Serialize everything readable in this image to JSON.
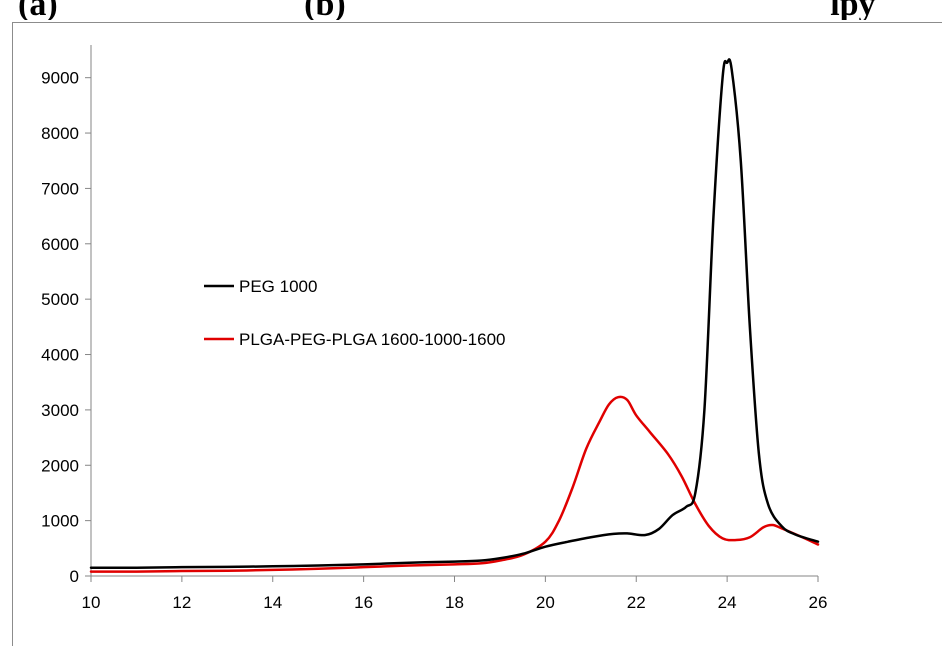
{
  "header": {
    "text": "(a)                             (b)                                                         lpy"
  },
  "chart_data": {
    "type": "line",
    "title": "",
    "xlabel": "",
    "ylabel": "",
    "xlim": [
      10,
      26
    ],
    "ylim": [
      0,
      9500
    ],
    "x_ticks": [
      10,
      12,
      14,
      16,
      18,
      20,
      22,
      24,
      26
    ],
    "y_ticks": [
      0,
      1000,
      2000,
      3000,
      4000,
      5000,
      6000,
      7000,
      8000,
      9000
    ],
    "grid": false,
    "legend_position": "center-left",
    "series": [
      {
        "name": "PEG 1000",
        "color": "#000000",
        "points": [
          [
            10,
            150
          ],
          [
            11,
            150
          ],
          [
            12,
            160
          ],
          [
            13,
            165
          ],
          [
            14,
            175
          ],
          [
            15,
            190
          ],
          [
            16,
            210
          ],
          [
            17,
            240
          ],
          [
            18,
            260
          ],
          [
            18.6,
            280
          ],
          [
            19,
            320
          ],
          [
            19.5,
            400
          ],
          [
            20,
            530
          ],
          [
            20.5,
            620
          ],
          [
            21,
            700
          ],
          [
            21.5,
            760
          ],
          [
            21.8,
            770
          ],
          [
            22.2,
            740
          ],
          [
            22.5,
            850
          ],
          [
            22.8,
            1100
          ],
          [
            23.1,
            1250
          ],
          [
            23.3,
            1500
          ],
          [
            23.5,
            3000
          ],
          [
            23.7,
            6500
          ],
          [
            23.9,
            9000
          ],
          [
            24.0,
            9270
          ],
          [
            24.1,
            9150
          ],
          [
            24.3,
            7500
          ],
          [
            24.5,
            4500
          ],
          [
            24.7,
            2200
          ],
          [
            24.9,
            1300
          ],
          [
            25.2,
            900
          ],
          [
            25.5,
            750
          ],
          [
            26,
            620
          ]
        ]
      },
      {
        "name": "PLGA-PEG-PLGA 1600-1000-1600",
        "color": "#e00000",
        "points": [
          [
            10,
            80
          ],
          [
            11,
            80
          ],
          [
            12,
            90
          ],
          [
            13,
            95
          ],
          [
            14,
            110
          ],
          [
            15,
            130
          ],
          [
            16,
            160
          ],
          [
            17,
            190
          ],
          [
            18,
            210
          ],
          [
            18.6,
            230
          ],
          [
            19,
            280
          ],
          [
            19.5,
            380
          ],
          [
            20,
            620
          ],
          [
            20.3,
            1000
          ],
          [
            20.6,
            1600
          ],
          [
            20.9,
            2300
          ],
          [
            21.2,
            2800
          ],
          [
            21.4,
            3100
          ],
          [
            21.6,
            3230
          ],
          [
            21.8,
            3180
          ],
          [
            22.0,
            2900
          ],
          [
            22.3,
            2600
          ],
          [
            22.7,
            2200
          ],
          [
            23.0,
            1800
          ],
          [
            23.3,
            1300
          ],
          [
            23.6,
            900
          ],
          [
            23.9,
            680
          ],
          [
            24.2,
            650
          ],
          [
            24.5,
            700
          ],
          [
            24.8,
            880
          ],
          [
            25.0,
            920
          ],
          [
            25.2,
            860
          ],
          [
            25.6,
            720
          ],
          [
            26,
            570
          ]
        ]
      }
    ]
  }
}
